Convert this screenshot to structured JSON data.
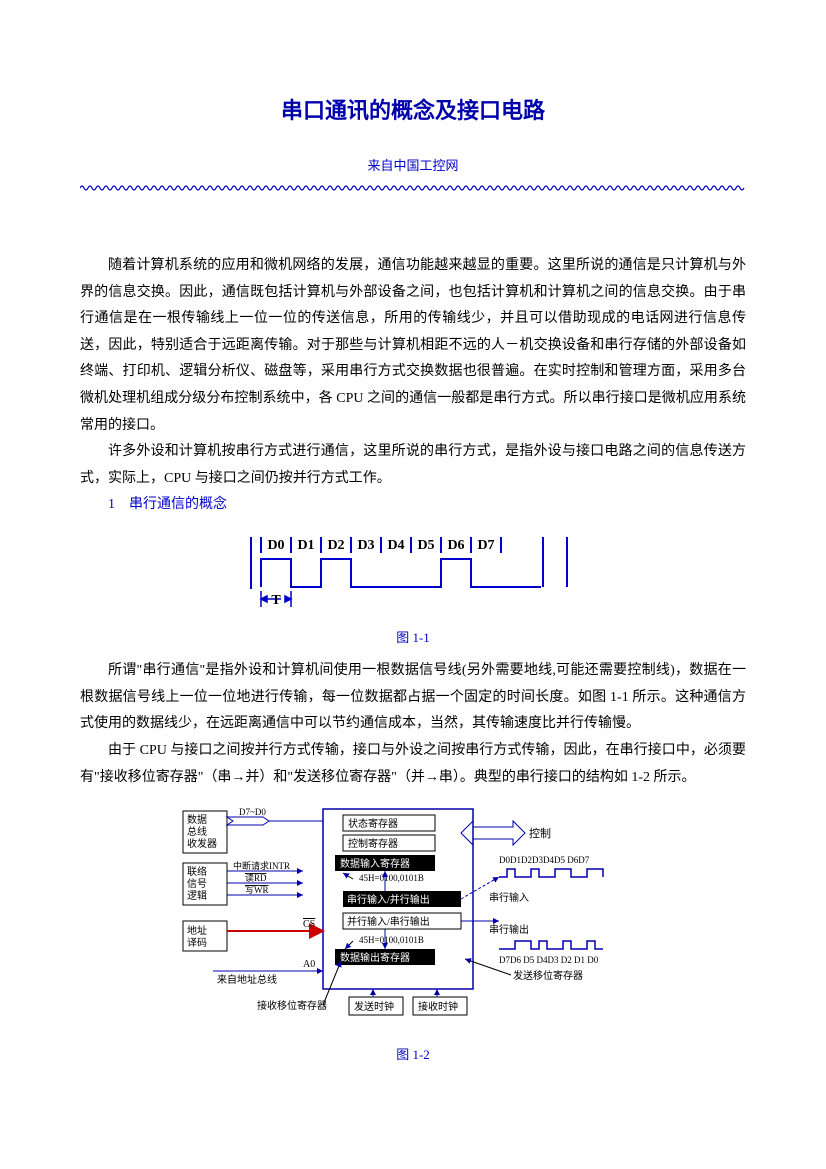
{
  "doc": {
    "title": "串口通讯的概念及接口电路",
    "subtitle": "来自中国工控网",
    "para1": "随着计算机系统的应用和微机网络的发展，通信功能越来越显的重要。这里所说的通信是只计算机与外界的信息交换。因此，通信既包括计算机与外部设备之间，也包括计算机和计算机之间的信息交换。由于串行通信是在一根传输线上一位一位的传送信息，所用的传输线少，并且可以借助现成的电话网进行信息传送，因此，特别适合于远距离传输。对于那些与计算机相距不远的人－机交换设备和串行存储的外部设备如终端、打印机、逻辑分析仪、磁盘等，采用串行方式交换数据也很普遍。在实时控制和管理方面，采用多台微机处理机组成分级分布控制系统中，各 CPU 之间的通信一般都是串行方式。所以串行接口是微机应用系统常用的接口。",
    "para2": "许多外设和计算机按串行方式进行通信，这里所说的串行方式，是指外设与接口电路之间的信息传送方式，实际上，CPU 与接口之间仍按并行方式工作。",
    "section1": "1　串行通信的概念",
    "fig1_caption": "图 1-1",
    "para3": "所谓\"串行通信\"是指外设和计算机间使用一根数据信号线(另外需要地线,可能还需要控制线)，数据在一根数据信号线上一位一位地进行传输，每一位数据都占据一个固定的时间长度。如图 1-1 所示。这种通信方式使用的数据线少，在远距离通信中可以节约通信成本，当然，其传输速度比并行传输慢。",
    "para4": "由于 CPU 与接口之间按并行方式传输，接口与外设之间按串行方式传输，因此，在串行接口中，必须要有\"接收移位寄存器\"（串→并）和\"发送移位寄存器\"（并→串）。典型的串行接口的结构如 1-2 所示。",
    "fig2_caption": "图 1-2"
  },
  "fig1": {
    "labels": [
      "D0",
      "D1",
      "D2",
      "D3",
      "D4",
      "D5",
      "D6",
      "D7"
    ],
    "t_label": "T",
    "line_color": "#0000cc",
    "text_color": "#000000",
    "font_size": 14,
    "font_weight": "bold"
  },
  "fig2": {
    "boxes": {
      "bus_tx": "数据\n总线\n收发器",
      "contact_logic": "联络\n信号\n逻辑",
      "addr_decode": "地址\n译码",
      "status_reg": "状态寄存器",
      "ctrl_reg": "控制寄存器",
      "data_in_reg": "数据输入寄存器",
      "serial_in_parallel_out": "串行输入/并行输出",
      "parallel_in_serial_out": "并行输入/串行输出",
      "data_out_reg": "数据输出寄存器",
      "tx_clk": "发送时钟",
      "rx_clk": "接收时钟"
    },
    "labels": {
      "d7d0": "D7~D0",
      "intr": "中断请求INTR",
      "rd": "读RD",
      "wr": "写WR",
      "cs": "CS",
      "a0": "A0",
      "from_addr_bus": "来自地址总线",
      "hex1": "45H=0100,0101B",
      "hex2": "45H=0100,0101B",
      "control": "控制",
      "serial_in": "串行输入",
      "serial_out": "串行输出",
      "bits_top": "D0D1D2D3D4D5 D6D7",
      "bits_bottom": "D7D6 D5 D4D3 D2 D1 D0",
      "rx_shift_reg": "接收移位寄存器",
      "tx_shift_reg": "发送移位寄存器"
    },
    "colors": {
      "line": "#0000aa",
      "box_border": "#000000",
      "text": "#000000",
      "arrow_fill": "#cc0000"
    },
    "font_size": 10
  },
  "style": {
    "title_color": "#0000aa",
    "link_color": "#0000cc",
    "text_color": "#000000",
    "background": "#ffffff"
  }
}
